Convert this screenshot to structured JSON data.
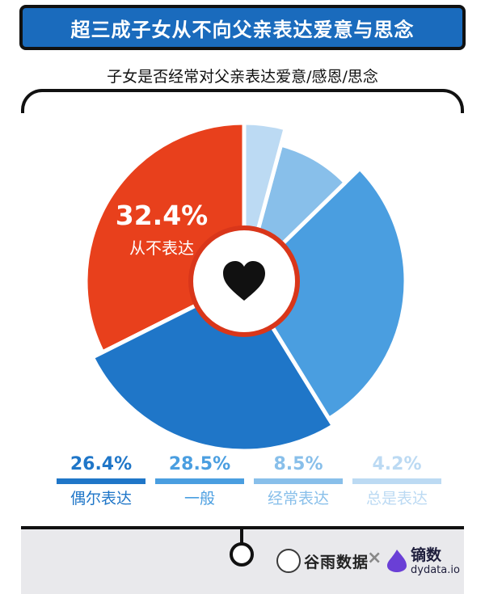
{
  "header": {
    "title": "超三成子女从不向父亲表达爱意与思念",
    "subtitle": "子女是否经常对父亲表达爱意/感恩/思念"
  },
  "chart_data": {
    "type": "pie",
    "title": "子女是否经常对父亲表达爱意/感恩/思念",
    "categories": [
      "从不表达",
      "偶尔表达",
      "一般",
      "经常表达",
      "总是表达"
    ],
    "values": [
      32.4,
      26.4,
      28.5,
      8.5,
      4.2
    ],
    "value_labels": [
      "32.4%",
      "26.4%",
      "28.5%",
      "8.5%",
      "4.2%"
    ],
    "colors": [
      "#e8401c",
      "#1f76c8",
      "#4a9ee0",
      "#88bfea",
      "#bcdaf3"
    ],
    "highlight": {
      "value": "32.4%",
      "label": "从不表达"
    },
    "center_icon": "heart-icon",
    "legend_placement": "bottom"
  },
  "footer": {
    "brand1": "谷雨数据",
    "separator": "×",
    "brand2_name": "镝数",
    "brand2_domain": "dydata.io",
    "brand1_icon": "guyu-bird-logo-icon",
    "brand2_icon": "dydata-flame-logo-icon"
  }
}
